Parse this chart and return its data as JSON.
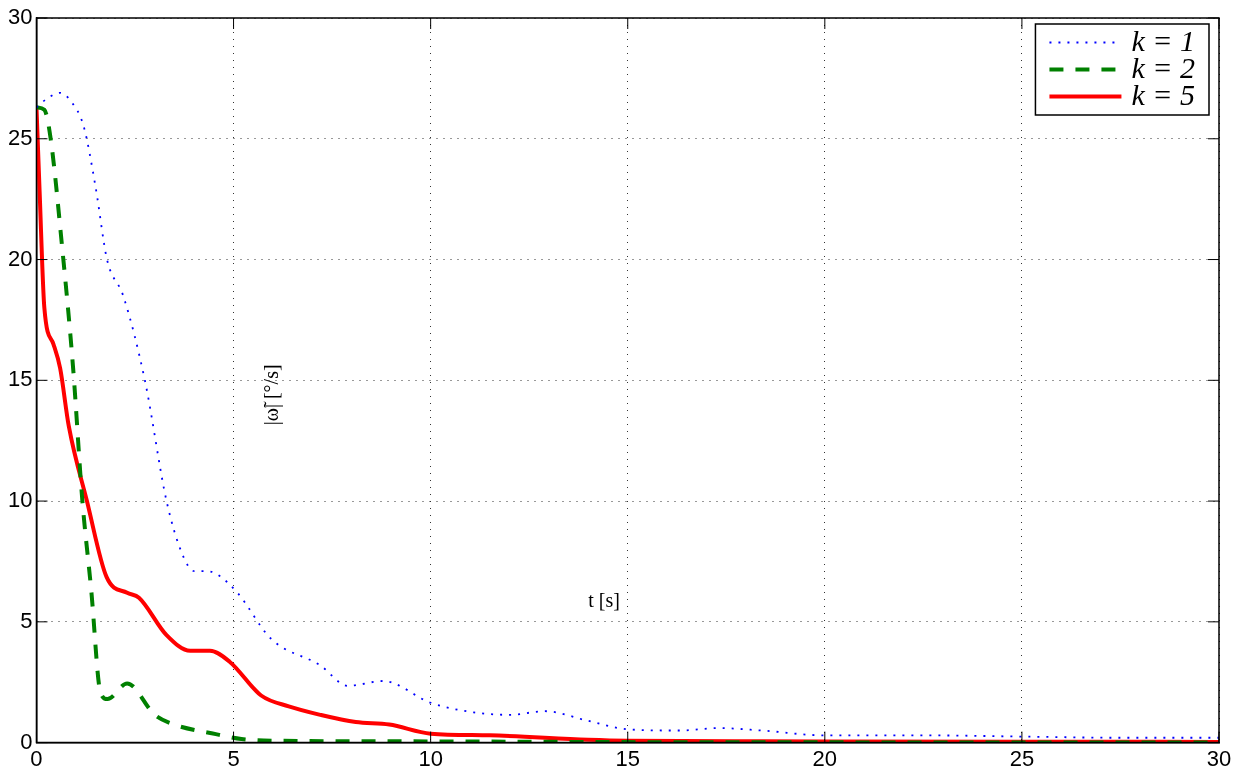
{
  "chart_data": {
    "type": "line",
    "xlabel": "t [s]",
    "ylabel": "|ω̃| [°/s]",
    "xlim": [
      0,
      30
    ],
    "ylim": [
      0,
      30
    ],
    "xticks": [
      0,
      5,
      10,
      15,
      20,
      25,
      30
    ],
    "yticks": [
      0,
      5,
      10,
      15,
      20,
      25,
      30
    ],
    "grid": true,
    "legend": "top right",
    "marker": "none",
    "series": [
      {
        "name": "k = 1",
        "color": "#0000ff",
        "line_style": "dotted",
        "x": [
          0,
          0.3,
          0.6,
          0.9,
          1.2,
          1.5,
          1.79,
          2.2,
          2.75,
          3.3,
          3.7,
          4.0,
          4.3,
          4.55,
          5.1,
          5.95,
          7.2,
          7.9,
          8.8,
          10,
          11.1,
          12,
          12.9,
          14,
          15,
          16.3,
          17.3,
          18.4,
          20,
          22.5,
          25,
          27.5,
          30
        ],
        "values": [
          26.3,
          26.7,
          26.9,
          26.5,
          25.5,
          23,
          20,
          18.5,
          15,
          10,
          7.8,
          7.1,
          7.1,
          7.0,
          6.2,
          4.3,
          3.2,
          2.35,
          2.55,
          1.65,
          1.25,
          1.15,
          1.3,
          0.9,
          0.55,
          0.5,
          0.6,
          0.5,
          0.3,
          0.3,
          0.25,
          0.2,
          0.2
        ]
      },
      {
        "name": "k = 2",
        "color": "#008000",
        "line_style": "dashed",
        "x": [
          0,
          0.2,
          0.36,
          0.64,
          0.93,
          1.16,
          1.39,
          1.62,
          1.8,
          2.3,
          3,
          3.4,
          4.55,
          5.2,
          6,
          10,
          15,
          20,
          30
        ],
        "values": [
          26.3,
          26.2,
          25,
          20.7,
          15.5,
          10.1,
          6.3,
          2.1,
          1.8,
          2.45,
          1.15,
          0.8,
          0.35,
          0.15,
          0.08,
          0.05,
          0.02,
          0.01,
          0
        ]
      },
      {
        "name": "k = 5",
        "color": "#ff0000",
        "line_style": "solid",
        "x": [
          0,
          0.08,
          0.2,
          0.43,
          0.6,
          0.82,
          1.28,
          1.78,
          2.3,
          2.6,
          3.3,
          3.9,
          4.4,
          4.9,
          5.7,
          6.4,
          7.2,
          8.1,
          8.95,
          10,
          11.5,
          14,
          15,
          20,
          30
        ],
        "values": [
          26.3,
          22.8,
          18,
          16.5,
          15.5,
          13.1,
          10,
          6.85,
          6.2,
          6.0,
          4.45,
          3.8,
          3.8,
          3.35,
          1.95,
          1.5,
          1.15,
          0.85,
          0.75,
          0.37,
          0.3,
          0.12,
          0.08,
          0.05,
          0.03
        ]
      }
    ]
  }
}
